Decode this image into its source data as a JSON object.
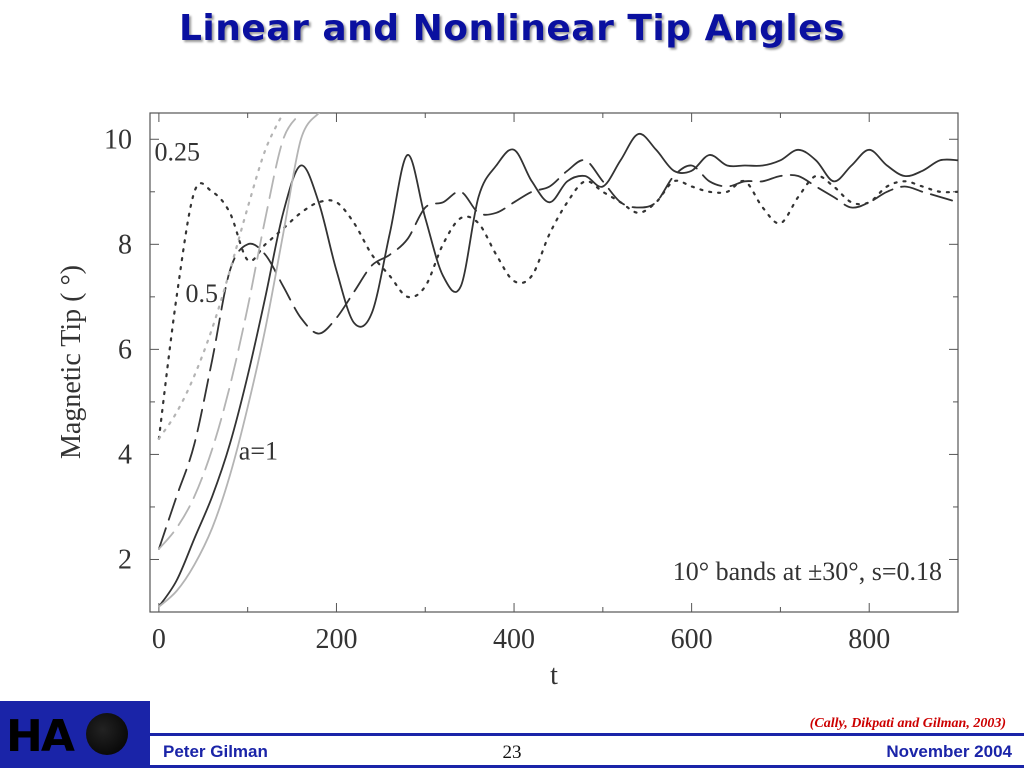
{
  "slide": {
    "title": "Linear and Nonlinear Tip Angles",
    "citation": "(Cally, Dikpati and Gilman, 2003)",
    "author": "Peter Gilman",
    "page_number": "23",
    "date": "November 2004",
    "logo_text": "HA"
  },
  "colors": {
    "title": "#0a10a0",
    "footer_blue": "#1a24a8",
    "citation": "#cc0000",
    "nonlinear_curves": "#333333",
    "linear_curves": "#b4b4b4"
  },
  "chart_data": {
    "type": "line",
    "xlabel": "t",
    "ylabel": "Magnetic Tip ( °)",
    "xlim": [
      -10,
      900
    ],
    "ylim": [
      1,
      10.5
    ],
    "x_ticks": [
      0,
      200,
      400,
      600,
      800
    ],
    "y_ticks": [
      2,
      4,
      6,
      8,
      10
    ],
    "x_tick_labels": [
      "0",
      "200",
      "400",
      "600",
      "800"
    ],
    "y_tick_labels": [
      "2",
      "4",
      "6",
      "8",
      "10"
    ],
    "annotation": "10° bands at ±30°, s=0.18",
    "curve_labels": [
      {
        "text": "0.25",
        "x": -5,
        "y": 9.6
      },
      {
        "text": "0.5",
        "x": 30,
        "y": 6.9
      },
      {
        "text": "a=1",
        "x": 90,
        "y": 3.9
      }
    ],
    "series": [
      {
        "style": "solid",
        "linear": false,
        "x": [
          0,
          20,
          40,
          60,
          80,
          100,
          120,
          140,
          160,
          180,
          200,
          220,
          240,
          260,
          280,
          300,
          320,
          340,
          360,
          380,
          400,
          420,
          440,
          460,
          480,
          500,
          520,
          540,
          560,
          580,
          600,
          620,
          640,
          660,
          680,
          700,
          720,
          740,
          760,
          780,
          800,
          820,
          840,
          860,
          880,
          900
        ],
        "y": [
          1.1,
          1.6,
          2.4,
          3.2,
          4.2,
          5.5,
          7.0,
          8.6,
          9.5,
          8.8,
          7.5,
          6.5,
          6.7,
          8.2,
          9.7,
          8.5,
          7.4,
          7.2,
          8.9,
          9.5,
          9.8,
          9.2,
          8.8,
          9.2,
          9.3,
          9.1,
          9.6,
          10.1,
          9.8,
          9.4,
          9.4,
          9.7,
          9.5,
          9.5,
          9.5,
          9.6,
          9.8,
          9.6,
          9.2,
          9.5,
          9.8,
          9.5,
          9.3,
          9.4,
          9.6,
          9.6
        ]
      },
      {
        "style": "dashed",
        "linear": false,
        "x": [
          0,
          20,
          40,
          60,
          80,
          100,
          120,
          140,
          160,
          180,
          200,
          220,
          240,
          260,
          280,
          300,
          320,
          340,
          360,
          380,
          400,
          420,
          440,
          460,
          480,
          500,
          520,
          540,
          560,
          580,
          600,
          620,
          640,
          660,
          680,
          700,
          720,
          740,
          760,
          780,
          800,
          820,
          840,
          860,
          880,
          900
        ],
        "y": [
          2.2,
          3.2,
          4.2,
          5.8,
          7.5,
          8.0,
          7.8,
          7.2,
          6.6,
          6.3,
          6.6,
          7.1,
          7.6,
          7.8,
          8.1,
          8.7,
          8.8,
          9.0,
          8.6,
          8.6,
          8.8,
          9.0,
          9.1,
          9.4,
          9.6,
          9.2,
          8.8,
          8.7,
          8.8,
          9.3,
          9.5,
          9.2,
          9.1,
          9.2,
          9.2,
          9.3,
          9.3,
          9.1,
          8.9,
          8.7,
          8.8,
          9.0,
          9.1,
          9.0,
          8.9,
          8.8
        ]
      },
      {
        "style": "dotted",
        "linear": false,
        "x": [
          0,
          20,
          40,
          60,
          80,
          100,
          120,
          140,
          160,
          180,
          200,
          220,
          240,
          260,
          280,
          300,
          320,
          340,
          360,
          380,
          400,
          420,
          440,
          460,
          480,
          500,
          520,
          540,
          560,
          580,
          600,
          620,
          640,
          660,
          680,
          700,
          720,
          740,
          760,
          780,
          800,
          820,
          840,
          860,
          880,
          900
        ],
        "y": [
          4.3,
          7.0,
          9.0,
          9.0,
          8.6,
          7.7,
          8.0,
          8.3,
          8.6,
          8.8,
          8.8,
          8.4,
          7.8,
          7.4,
          7.0,
          7.2,
          8.0,
          8.5,
          8.4,
          7.8,
          7.3,
          7.4,
          8.2,
          8.8,
          9.2,
          9.0,
          8.8,
          8.6,
          8.8,
          9.2,
          9.1,
          9.0,
          9.0,
          9.2,
          8.7,
          8.4,
          8.9,
          9.3,
          9.1,
          8.8,
          8.8,
          9.1,
          9.2,
          9.1,
          9.0,
          9.0
        ]
      },
      {
        "style": "solid",
        "linear": true,
        "x": [
          0,
          20,
          40,
          60,
          80,
          100,
          120,
          140,
          160,
          180
        ],
        "y": [
          1.1,
          1.4,
          1.9,
          2.6,
          3.6,
          4.9,
          6.4,
          8.2,
          10.0,
          10.5
        ]
      },
      {
        "style": "dashed",
        "linear": true,
        "x": [
          0,
          20,
          40,
          60,
          80,
          100,
          120,
          140,
          160
        ],
        "y": [
          2.2,
          2.6,
          3.2,
          4.1,
          5.3,
          6.8,
          8.5,
          10.0,
          10.5
        ]
      },
      {
        "style": "dotted",
        "linear": true,
        "x": [
          0,
          20,
          40,
          60,
          80,
          100,
          120,
          140
        ],
        "y": [
          4.3,
          4.8,
          5.5,
          6.4,
          7.5,
          8.7,
          9.8,
          10.5
        ]
      }
    ]
  }
}
